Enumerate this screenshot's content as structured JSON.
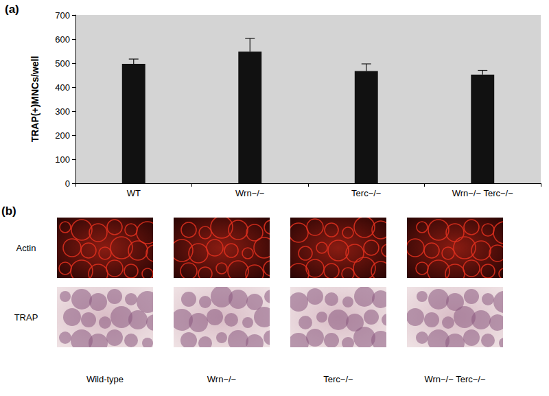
{
  "chart_data": {
    "type": "bar",
    "title": "(a)",
    "y_label": "TRAP(+)MNCs/well",
    "categories": [
      "WT",
      "Wrn−/−",
      "Terc−/−",
      "Wrn−/− Terc−/−"
    ],
    "values": [
      497,
      548,
      467,
      452
    ],
    "errors": [
      20,
      55,
      30,
      18
    ],
    "color": "#111111",
    "ylim": [
      0,
      700
    ],
    "yticks": [
      0,
      100,
      200,
      300,
      400,
      500,
      600,
      700
    ],
    "grid": false
  },
  "images": {
    "label": "(b)",
    "rows": [
      "Actin",
      "TRAP"
    ],
    "columns": [
      "Wild-type",
      "Wrn−/−",
      "Terc−/−",
      "Wrn−/− Terc−/−"
    ]
  }
}
